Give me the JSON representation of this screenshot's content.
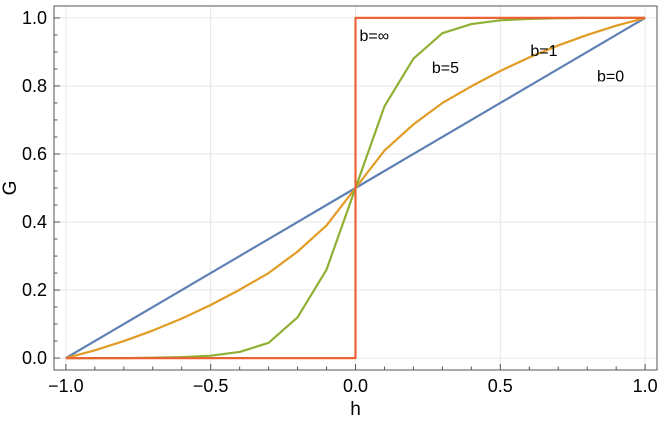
{
  "chart_data": {
    "type": "line",
    "title": "",
    "xlabel": "h",
    "ylabel": "G",
    "xlim": [
      -1.0,
      1.0
    ],
    "ylim": [
      0.0,
      1.0
    ],
    "xticks": [
      -1.0,
      -0.5,
      0.0,
      0.5,
      1.0
    ],
    "xtick_labels": [
      "−1.0",
      "−0.5",
      "0.0",
      "0.5",
      "1.0"
    ],
    "yticks": [
      0.0,
      0.2,
      0.4,
      0.6,
      0.8,
      1.0
    ],
    "ytick_labels": [
      "0.0",
      "0.2",
      "0.4",
      "0.6",
      "0.8",
      "1.0"
    ],
    "grid": true,
    "legend": "none",
    "series": [
      {
        "name": "b=0",
        "color": "#5E81B5",
        "x": [
          -1.0,
          -0.9,
          -0.8,
          -0.7,
          -0.6,
          -0.5,
          -0.4,
          -0.3,
          -0.2,
          -0.1,
          0.0,
          0.1,
          0.2,
          0.3,
          0.4,
          0.5,
          0.6,
          0.7,
          0.8,
          0.9,
          1.0
        ],
        "y": [
          0.0,
          0.05,
          0.1,
          0.15,
          0.2,
          0.25,
          0.3,
          0.35,
          0.4,
          0.45,
          0.5,
          0.55,
          0.6,
          0.65,
          0.7,
          0.75,
          0.8,
          0.85,
          0.9,
          0.95,
          1.0
        ]
      },
      {
        "name": "b=1",
        "color": "#E19C24",
        "x": [
          -1.0,
          -0.9,
          -0.8,
          -0.7,
          -0.6,
          -0.5,
          -0.4,
          -0.3,
          -0.2,
          -0.1,
          0.0,
          0.1,
          0.2,
          0.3,
          0.4,
          0.5,
          0.6,
          0.7,
          0.8,
          0.9,
          1.0
        ],
        "y": [
          0.0,
          0.023,
          0.05,
          0.081,
          0.116,
          0.156,
          0.201,
          0.25,
          0.313,
          0.39,
          0.5,
          0.61,
          0.687,
          0.75,
          0.799,
          0.844,
          0.884,
          0.919,
          0.95,
          0.977,
          1.0
        ]
      },
      {
        "name": "b=5",
        "color": "#8FB032",
        "x": [
          -1.0,
          -0.9,
          -0.8,
          -0.7,
          -0.6,
          -0.5,
          -0.4,
          -0.3,
          -0.2,
          -0.1,
          0.0,
          0.1,
          0.2,
          0.3,
          0.4,
          0.5,
          0.6,
          0.7,
          0.8,
          0.9,
          1.0
        ],
        "y": [
          0.0,
          0.0,
          0.0,
          0.001,
          0.003,
          0.007,
          0.018,
          0.045,
          0.12,
          0.26,
          0.5,
          0.74,
          0.88,
          0.955,
          0.982,
          0.993,
          0.997,
          0.999,
          1.0,
          1.0,
          1.0
        ]
      },
      {
        "name": "b=∞",
        "color": "#EB6235",
        "x": [
          -1.0,
          0.0,
          0.0,
          1.0
        ],
        "y": [
          0.0,
          0.0,
          1.0,
          1.0
        ]
      }
    ],
    "annotations": [
      {
        "text": "b=∞",
        "x": 0.0,
        "y": 0.95
      },
      {
        "text": "b=5",
        "x": 0.25,
        "y": 0.855
      },
      {
        "text": "b=1",
        "x": 0.59,
        "y": 0.905
      },
      {
        "text": "b=0",
        "x": 0.82,
        "y": 0.83
      }
    ]
  }
}
